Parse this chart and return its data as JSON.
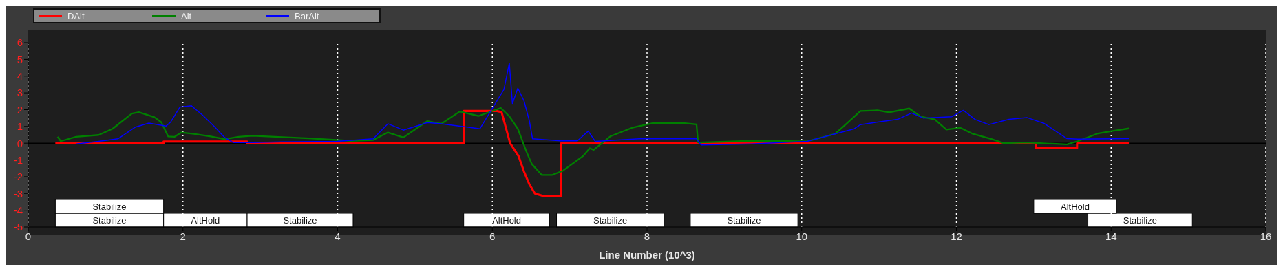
{
  "chart_data": {
    "type": "line",
    "xlabel": "Line Number (10^3)",
    "xlim": [
      0,
      16
    ],
    "xticks": [
      0,
      2,
      4,
      6,
      8,
      10,
      12,
      14,
      16
    ],
    "ylim": [
      -5,
      6
    ],
    "yticks": [
      -5,
      -4,
      -3,
      -2,
      -1,
      0,
      1,
      2,
      3,
      4,
      5,
      6
    ],
    "grid": "x",
    "legend": "top left",
    "line_style": "solid",
    "marker": "none",
    "series": [
      {
        "name": "DAlt",
        "color": "#ff0000",
        "x": [
          0.35,
          1.75,
          1.75,
          2.83,
          2.83,
          5.63,
          5.63,
          6.06,
          6.12,
          6.23,
          6.34,
          6.41,
          6.48,
          6.55,
          6.66,
          6.89,
          6.89,
          13.03,
          13.03,
          13.56,
          13.56,
          14.23
        ],
        "values": [
          0,
          0,
          0.1,
          0.1,
          0,
          0,
          1.92,
          1.92,
          1.85,
          0,
          -0.78,
          -1.7,
          -2.46,
          -3,
          -3.15,
          -3.15,
          0,
          0,
          -0.3,
          -0.3,
          0,
          0
        ]
      },
      {
        "name": "Alt",
        "color": "#008000",
        "x": [
          0.38,
          0.42,
          0.62,
          0.91,
          1.09,
          1.34,
          1.43,
          1.63,
          1.72,
          1.81,
          1.89,
          1.98,
          2.14,
          2.36,
          2.54,
          2.72,
          2.9,
          3.19,
          3.63,
          4.17,
          4.46,
          4.65,
          4.85,
          5.16,
          5.34,
          5.58,
          5.82,
          6.11,
          6.22,
          6.33,
          6.44,
          6.51,
          6.64,
          6.77,
          6.91,
          7.17,
          7.26,
          7.31,
          7.53,
          7.82,
          8.07,
          8.49,
          8.64,
          8.66,
          9.35,
          10.07,
          10.43,
          10.53,
          10.76,
          10.98,
          11.13,
          11.39,
          11.54,
          11.72,
          11.87,
          12.05,
          12.2,
          12.46,
          12.61,
          12.91,
          13.43,
          13.57,
          13.83,
          14.02,
          14.23
        ],
        "values": [
          0.38,
          0.12,
          0.38,
          0.49,
          0.86,
          1.77,
          1.85,
          1.55,
          1.25,
          0.4,
          0.38,
          0.64,
          0.56,
          0.4,
          0.24,
          0.38,
          0.44,
          0.38,
          0.29,
          0.14,
          0.19,
          0.64,
          0.34,
          1.32,
          1.16,
          1.89,
          1.62,
          2.1,
          1.6,
          0.86,
          -0.49,
          -1.24,
          -1.9,
          -1.9,
          -1.65,
          -0.78,
          -0.3,
          -0.4,
          0.42,
          0.94,
          1.19,
          1.19,
          1.12,
          0.04,
          0.14,
          0.11,
          0.56,
          0.96,
          1.92,
          1.96,
          1.84,
          2.07,
          1.58,
          1.42,
          0.81,
          0.92,
          0.58,
          0.24,
          0,
          0.04,
          -0.07,
          0.12,
          0.58,
          0.73,
          0.88
        ]
      },
      {
        "name": "BarAlt",
        "color": "#0000ff",
        "x": [
          0.62,
          0.91,
          1.16,
          1.38,
          1.56,
          1.78,
          1.84,
          1.96,
          2.11,
          2.25,
          2.4,
          2.54,
          2.65,
          2.9,
          3.27,
          3.99,
          4.46,
          4.65,
          4.85,
          5.16,
          5.34,
          5.71,
          5.84,
          6.04,
          6.15,
          6.22,
          6.26,
          6.33,
          6.41,
          6.48,
          6.52,
          6.88,
          7.1,
          7.24,
          7.33,
          7.9,
          8.64,
          8.7,
          9.35,
          10.07,
          10.68,
          10.76,
          11.24,
          11.42,
          11.57,
          11.94,
          12.09,
          12.24,
          12.42,
          12.68,
          12.91,
          13.13,
          13.43,
          13.57,
          14.23
        ],
        "values": [
          -0.04,
          0.11,
          0.26,
          0.95,
          1.2,
          1.02,
          1.25,
          2.15,
          2.23,
          1.69,
          1.02,
          0.34,
          0.04,
          0.04,
          0.08,
          0.11,
          0.26,
          1.16,
          0.78,
          1.23,
          1.16,
          0.94,
          0.86,
          2.37,
          3.2,
          4.77,
          2.37,
          3.28,
          2.52,
          1.31,
          0.26,
          0.14,
          0.14,
          0.72,
          0.11,
          0.26,
          0.26,
          -0.11,
          -0.04,
          0.11,
          0.86,
          1.11,
          1.42,
          1.8,
          1.5,
          1.58,
          1.96,
          1.42,
          1.11,
          1.42,
          1.53,
          1.19,
          0.27,
          0.24,
          0.27
        ]
      }
    ],
    "ref_lines": [
      {
        "axis": "y",
        "value": 0,
        "color": "#000000"
      }
    ],
    "bands": [
      {
        "axis": "x",
        "from": 0.35,
        "to": 1.75,
        "label": "Stabilize",
        "color": "#ffffff"
      },
      {
        "axis": "x",
        "from": 1.75,
        "to": 2.83,
        "label": "AltHold",
        "color": "#ffffff"
      },
      {
        "axis": "x",
        "from": 5.63,
        "to": 6.74,
        "label": "AltHold",
        "color": "#ffffff"
      },
      {
        "axis": "x",
        "from": 8.56,
        "to": 9.95,
        "label": "Stabilize",
        "color": "#ffffff"
      },
      {
        "axis": "x",
        "from": 13.7,
        "to": 15.05,
        "label": "Stabilize",
        "color": "#ffffff"
      },
      {
        "axis": "x",
        "from": 0.35,
        "to": 1.75,
        "label": "Stabilize",
        "color": "#ffffff"
      },
      {
        "axis": "x",
        "from": 2.83,
        "to": 4.2,
        "label": "Stabilize",
        "color": "#ffffff"
      },
      {
        "axis": "x",
        "from": 6.83,
        "to": 8.22,
        "label": "Stabilize",
        "color": "#ffffff"
      },
      {
        "axis": "x",
        "from": 13.0,
        "to": 14.07,
        "label": "AltHold",
        "color": "#ffffff"
      }
    ]
  }
}
